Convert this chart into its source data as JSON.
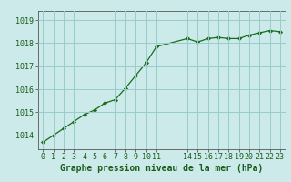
{
  "x": [
    0,
    1,
    2,
    3,
    4,
    5,
    6,
    7,
    8,
    9,
    10,
    11,
    14,
    15,
    16,
    17,
    18,
    19,
    20,
    21,
    22,
    23
  ],
  "y": [
    1013.7,
    1014.0,
    1014.3,
    1014.6,
    1014.9,
    1015.1,
    1015.4,
    1015.55,
    1016.05,
    1016.6,
    1017.15,
    1017.85,
    1018.2,
    1018.05,
    1018.2,
    1018.25,
    1018.2,
    1018.2,
    1018.35,
    1018.45,
    1018.55,
    1018.5
  ],
  "xticks": [
    0,
    1,
    2,
    3,
    4,
    5,
    6,
    7,
    8,
    9,
    10,
    11,
    14,
    15,
    16,
    17,
    18,
    19,
    20,
    21,
    22,
    23
  ],
  "xtick_labels": [
    "0",
    "1",
    "2",
    "3",
    "4",
    "5",
    "6",
    "7",
    "8",
    "9",
    "10",
    "11",
    "14",
    "15",
    "16",
    "17",
    "18",
    "19",
    "20",
    "21",
    "22",
    "23"
  ],
  "yticks": [
    1014,
    1015,
    1016,
    1017,
    1018,
    1019
  ],
  "ylim": [
    1013.4,
    1019.4
  ],
  "xlim": [
    -0.5,
    23.5
  ],
  "xlabel": "Graphe pression niveau de la mer (hPa)",
  "line_color": "#1a6b1a",
  "marker_color": "#1a6b1a",
  "bg_color": "#cceaea",
  "grid_color": "#99cccc",
  "axis_color": "#555555",
  "label_color": "#1a5c1a",
  "tick_label_color": "#1a5c1a",
  "fontsize_xlabel": 7.0,
  "fontsize_tick": 6.0
}
